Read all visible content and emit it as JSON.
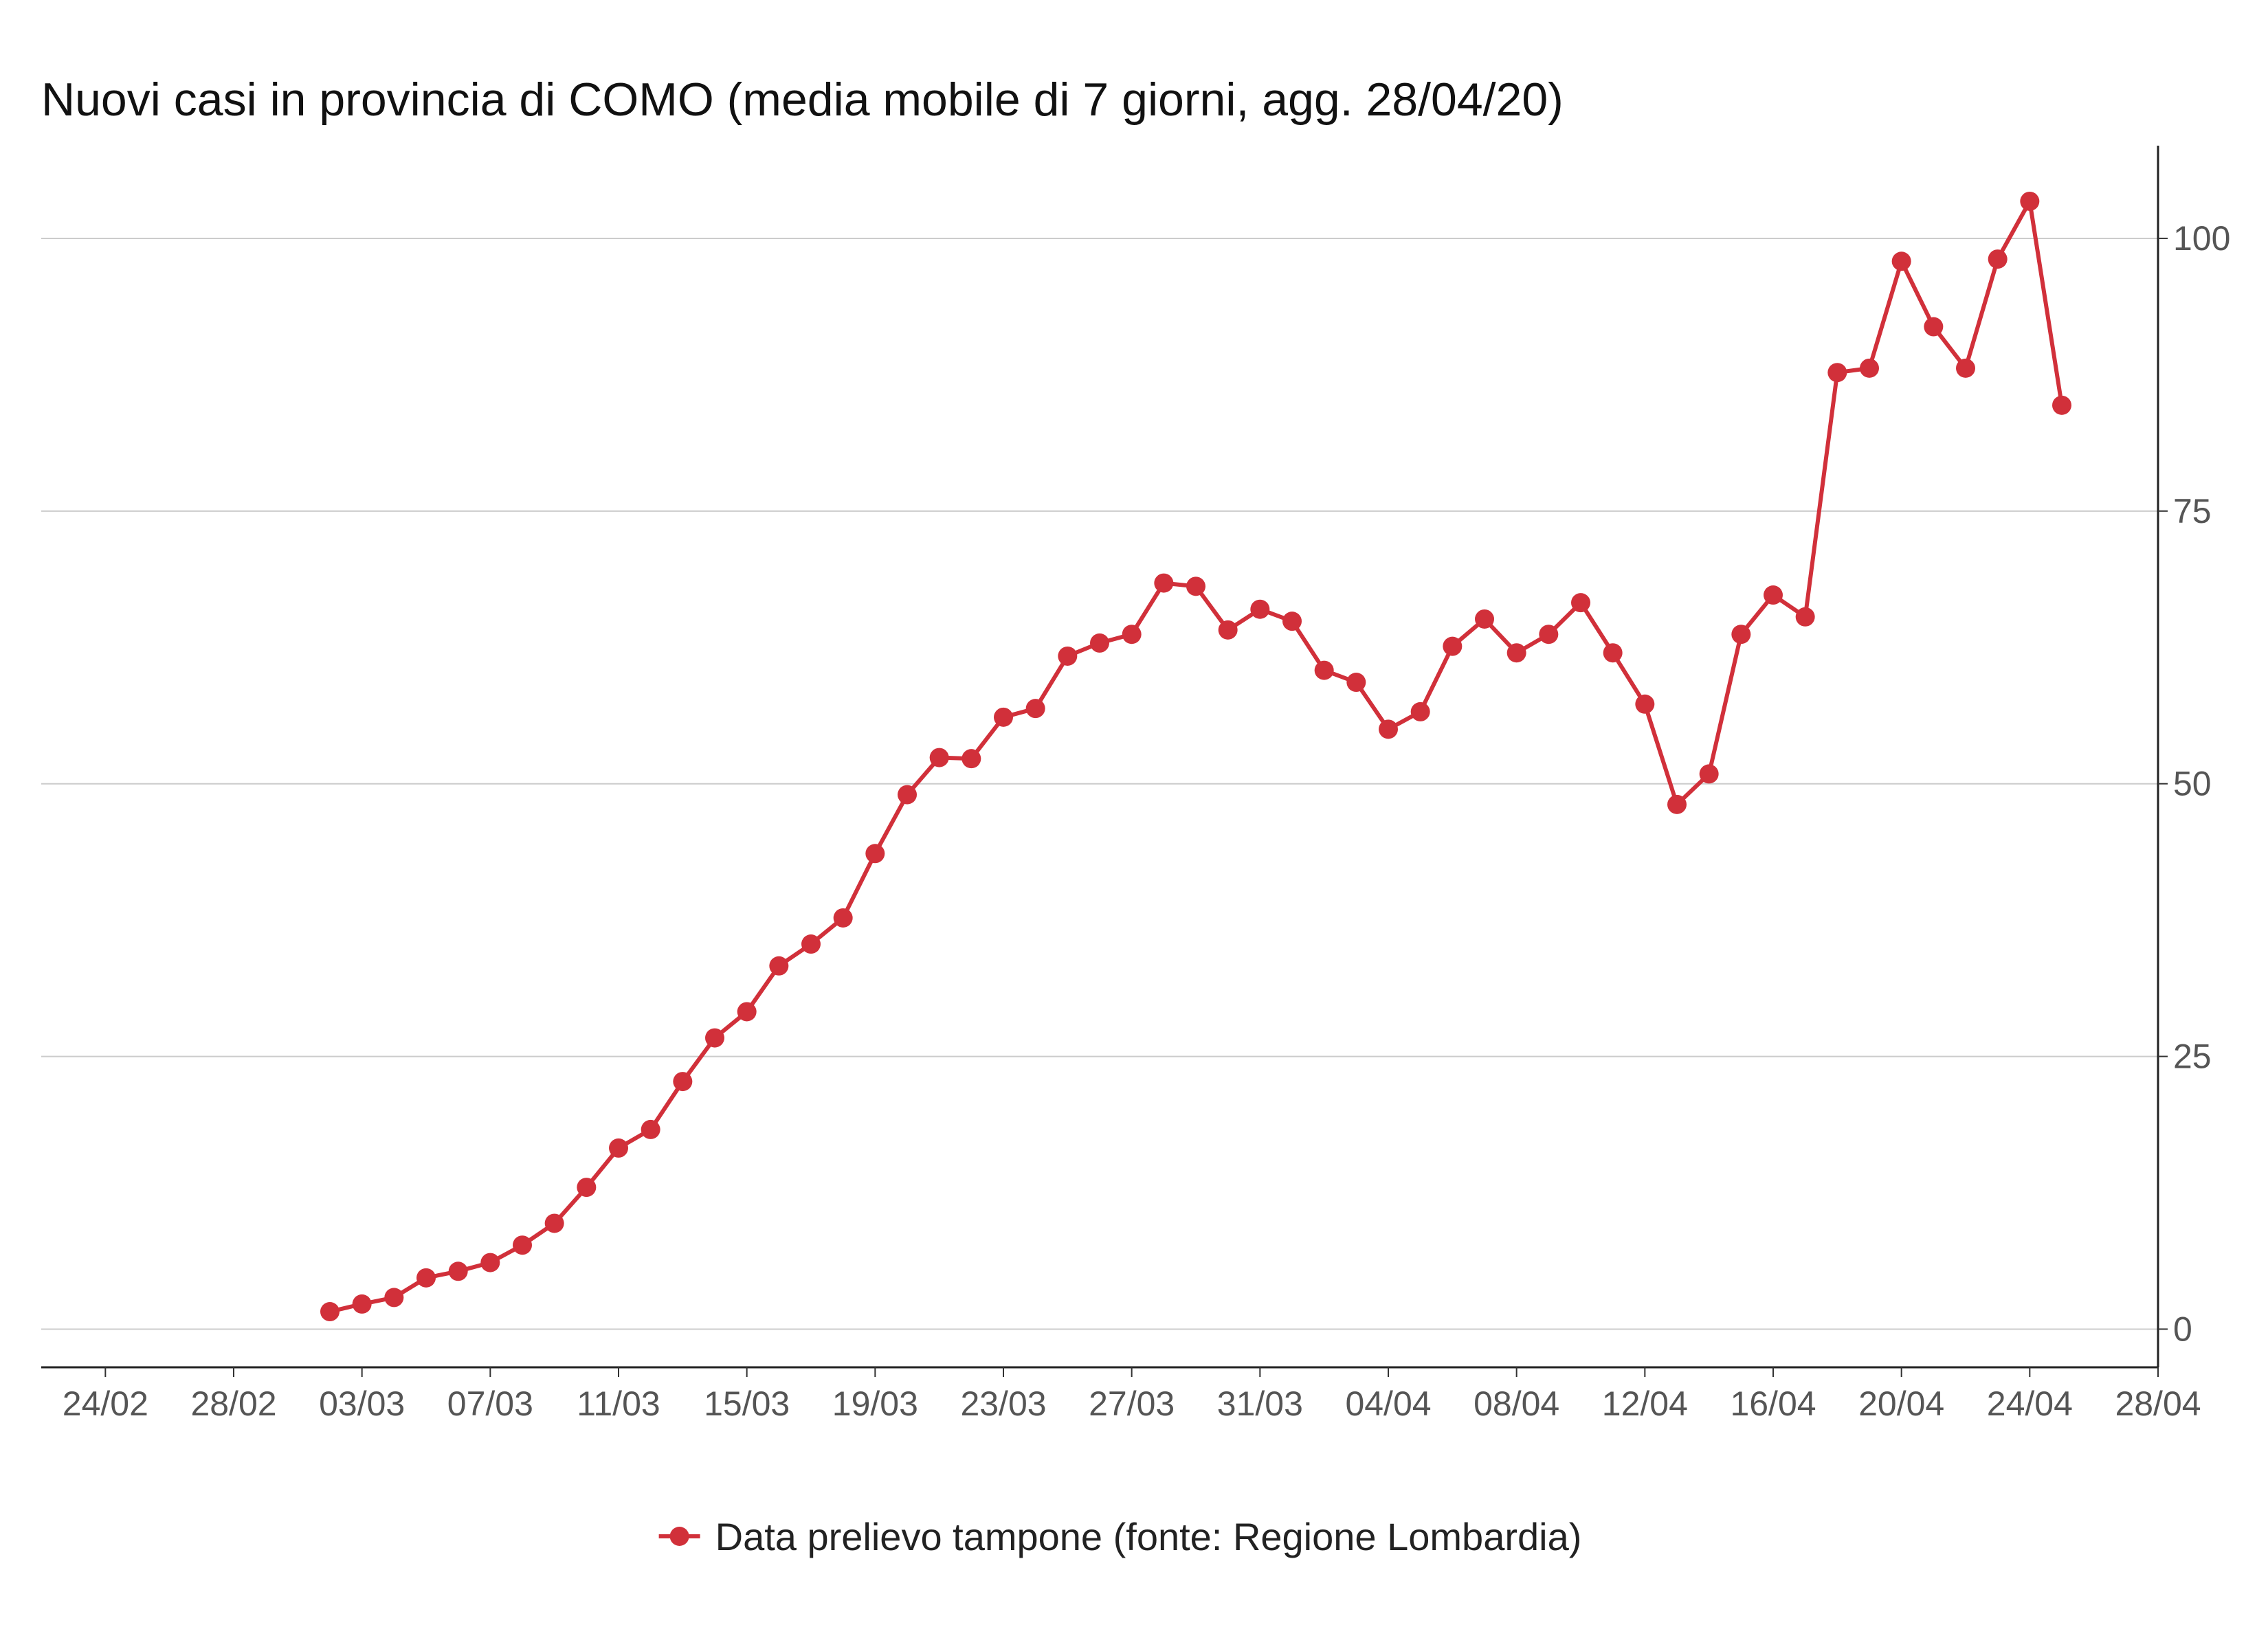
{
  "chart_data": {
    "type": "line",
    "title": "Nuovi casi in provincia di COMO (media mobile di 7 giorni, agg. 28/04/20)",
    "xlabel": "",
    "ylabel": "",
    "x_range": [
      "2020-02-22",
      "2020-04-28"
    ],
    "ylim": [
      -3.5,
      108.5
    ],
    "x_ticks": [
      {
        "date": "2020-02-24",
        "label": "24/02"
      },
      {
        "date": "2020-02-28",
        "label": "28/02"
      },
      {
        "date": "2020-03-03",
        "label": "03/03"
      },
      {
        "date": "2020-03-07",
        "label": "07/03"
      },
      {
        "date": "2020-03-11",
        "label": "11/03"
      },
      {
        "date": "2020-03-15",
        "label": "15/03"
      },
      {
        "date": "2020-03-19",
        "label": "19/03"
      },
      {
        "date": "2020-03-23",
        "label": "23/03"
      },
      {
        "date": "2020-03-27",
        "label": "27/03"
      },
      {
        "date": "2020-03-31",
        "label": "31/03"
      },
      {
        "date": "2020-04-04",
        "label": "04/04"
      },
      {
        "date": "2020-04-08",
        "label": "08/04"
      },
      {
        "date": "2020-04-12",
        "label": "12/04"
      },
      {
        "date": "2020-04-16",
        "label": "16/04"
      },
      {
        "date": "2020-04-20",
        "label": "20/04"
      },
      {
        "date": "2020-04-24",
        "label": "24/04"
      },
      {
        "date": "2020-04-28",
        "label": "28/04"
      }
    ],
    "y_ticks": [
      0,
      25,
      50,
      75,
      100
    ],
    "grid": {
      "horizontal": true,
      "vertical": false
    },
    "y_axis_position": "right",
    "legend": {
      "position": "bottom-center"
    },
    "series": [
      {
        "name": "Data prelievo tampone (fonte: Regione Lombardia)",
        "color": "#d1303a",
        "x": [
          "2020-03-02",
          "2020-03-03",
          "2020-03-04",
          "2020-03-05",
          "2020-03-06",
          "2020-03-07",
          "2020-03-08",
          "2020-03-09",
          "2020-03-10",
          "2020-03-11",
          "2020-03-12",
          "2020-03-13",
          "2020-03-14",
          "2020-03-15",
          "2020-03-16",
          "2020-03-17",
          "2020-03-18",
          "2020-03-19",
          "2020-03-20",
          "2020-03-21",
          "2020-03-22",
          "2020-03-23",
          "2020-03-24",
          "2020-03-25",
          "2020-03-26",
          "2020-03-27",
          "2020-03-28",
          "2020-03-29",
          "2020-03-30",
          "2020-03-31",
          "2020-04-01",
          "2020-04-02",
          "2020-04-03",
          "2020-04-04",
          "2020-04-05",
          "2020-04-06",
          "2020-04-07",
          "2020-04-08",
          "2020-04-09",
          "2020-04-10",
          "2020-04-11",
          "2020-04-12",
          "2020-04-13",
          "2020-04-14",
          "2020-04-15",
          "2020-04-16",
          "2020-04-17",
          "2020-04-18",
          "2020-04-19",
          "2020-04-20",
          "2020-04-21",
          "2020-04-22",
          "2020-04-23",
          "2020-04-24",
          "2020-04-25"
        ],
        "values": [
          1.6,
          2.3,
          2.9,
          4.7,
          5.3,
          6.1,
          7.7,
          9.7,
          13.0,
          16.6,
          18.3,
          22.7,
          26.7,
          29.1,
          33.3,
          35.3,
          37.7,
          43.6,
          49.0,
          52.4,
          52.3,
          56.1,
          56.9,
          61.7,
          62.9,
          63.7,
          68.4,
          68.1,
          64.1,
          66.0,
          64.9,
          60.4,
          59.3,
          55.0,
          56.6,
          62.6,
          65.1,
          62.0,
          63.7,
          66.6,
          62.0,
          57.3,
          48.1,
          50.9,
          63.7,
          67.3,
          65.3,
          87.7,
          88.1,
          97.9,
          91.9,
          88.1,
          98.1,
          103.4,
          84.7
        ]
      }
    ]
  }
}
